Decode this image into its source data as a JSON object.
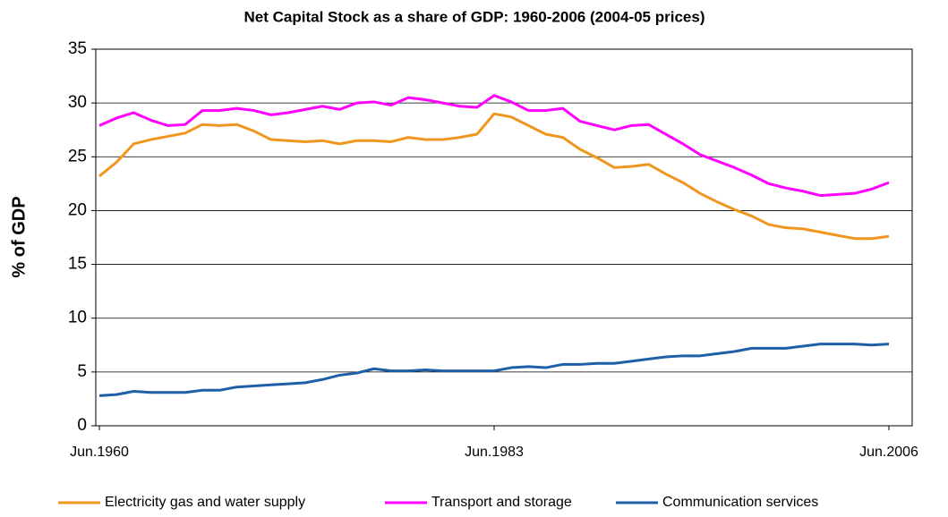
{
  "chart_data": {
    "type": "line",
    "title": "Net Capital Stock as a share of GDP: 1960-2006 (2004-05 prices)",
    "y_label": "% of GDP",
    "categories": [
      "Jun.1960",
      null,
      null,
      null,
      null,
      null,
      null,
      null,
      null,
      null,
      null,
      null,
      null,
      null,
      null,
      null,
      null,
      null,
      null,
      null,
      null,
      null,
      null,
      "Jun.1983",
      null,
      null,
      null,
      null,
      null,
      null,
      null,
      null,
      null,
      null,
      null,
      null,
      null,
      null,
      null,
      null,
      null,
      null,
      null,
      null,
      null,
      null,
      "Jun.2006"
    ],
    "series": [
      {
        "name": "Electricity gas and water supply",
        "color": "#f0961e",
        "values": [
          23.2,
          24.5,
          26.2,
          26.6,
          26.9,
          27.2,
          28.0,
          27.9,
          28.0,
          27.4,
          26.6,
          26.5,
          26.4,
          26.5,
          26.2,
          26.5,
          26.5,
          26.4,
          26.8,
          26.6,
          26.6,
          26.8,
          27.1,
          29.0,
          28.7,
          27.9,
          27.1,
          26.8,
          25.7,
          24.9,
          24.0,
          24.1,
          24.3,
          23.4,
          22.6,
          21.6,
          20.8,
          20.1,
          19.5,
          18.7,
          18.4,
          18.3,
          18.0,
          17.7,
          17.4,
          17.4,
          17.6
        ]
      },
      {
        "name": "Transport and storage",
        "color": "#ff00ff",
        "values": [
          27.9,
          28.6,
          29.1,
          28.4,
          27.9,
          28.0,
          29.3,
          29.3,
          29.5,
          29.3,
          28.9,
          29.1,
          29.4,
          29.7,
          29.4,
          30.0,
          30.1,
          29.8,
          30.5,
          30.3,
          30.0,
          29.7,
          29.6,
          30.7,
          30.1,
          29.3,
          29.3,
          29.5,
          28.3,
          27.9,
          27.5,
          27.9,
          28.0,
          27.1,
          26.2,
          25.2,
          24.6,
          24.0,
          23.3,
          22.5,
          22.1,
          21.8,
          21.4,
          21.5,
          21.6,
          22.0,
          22.6
        ]
      },
      {
        "name": "Communication services",
        "color": "#1f5fa8",
        "values": [
          2.8,
          2.9,
          3.2,
          3.1,
          3.1,
          3.1,
          3.3,
          3.3,
          3.6,
          3.7,
          3.8,
          3.9,
          4.0,
          4.3,
          4.7,
          4.9,
          5.3,
          5.1,
          5.1,
          5.2,
          5.1,
          5.1,
          5.1,
          5.1,
          5.4,
          5.5,
          5.4,
          5.7,
          5.7,
          5.8,
          5.8,
          6.0,
          6.2,
          6.4,
          6.5,
          6.5,
          6.7,
          6.9,
          7.2,
          7.2,
          7.2,
          7.4,
          7.6,
          7.6,
          7.6,
          7.5,
          7.6
        ]
      }
    ],
    "ylim": [
      0,
      35
    ],
    "yticks": [
      0,
      5,
      10,
      15,
      20,
      25,
      30,
      35
    ],
    "grid": true,
    "legend": "bottom"
  }
}
